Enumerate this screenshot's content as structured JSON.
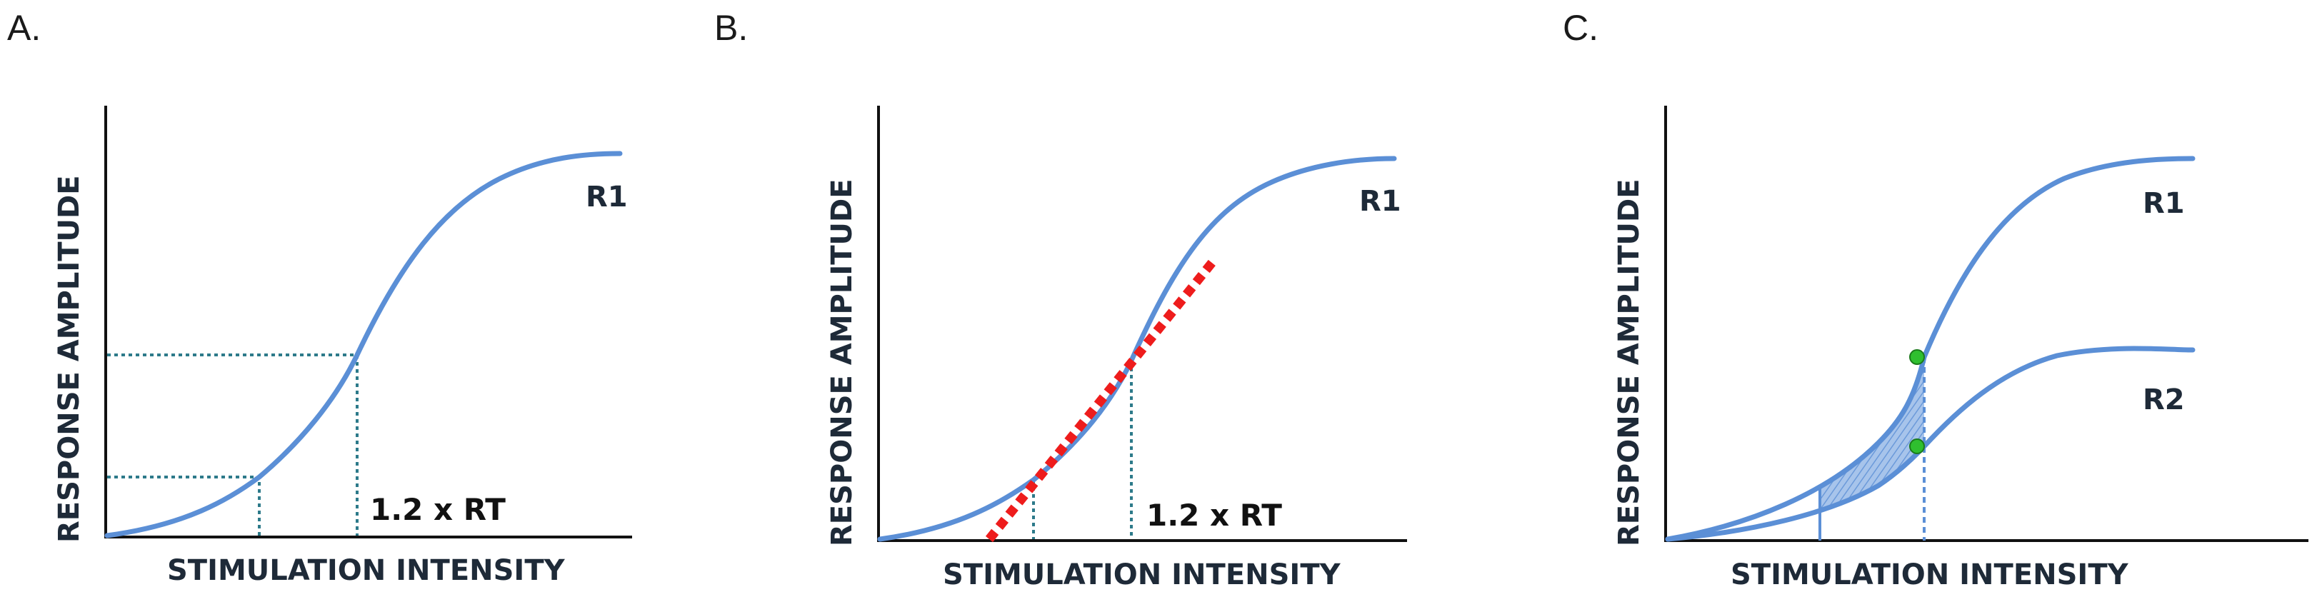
{
  "panels": [
    {
      "letter": "A.",
      "y_axis_title": "RESPONSE AMPLITUDE",
      "x_axis_title": "STIMULATION INTENSITY",
      "curve_label": "R1",
      "annotation": "1.2 x RT"
    },
    {
      "letter": "B.",
      "y_axis_title": "RESPONSE AMPLITUDE",
      "x_axis_title": "STIMULATION INTENSITY",
      "curve_label": "R1",
      "annotation": "1.2 x RT"
    },
    {
      "letter": "C.",
      "y_axis_title": "RESPONSE AMPLITUDE",
      "x_axis_title": "STIMULATION INTENSITY",
      "curve_label_1": "R1",
      "curve_label_2": "R2"
    }
  ],
  "colors": {
    "curve": "#5b8fd6",
    "guide": "#2d7a8a",
    "tangent": "#ee1c1c",
    "point": "#2fbf2f",
    "shade": "#5b8fd6"
  }
}
